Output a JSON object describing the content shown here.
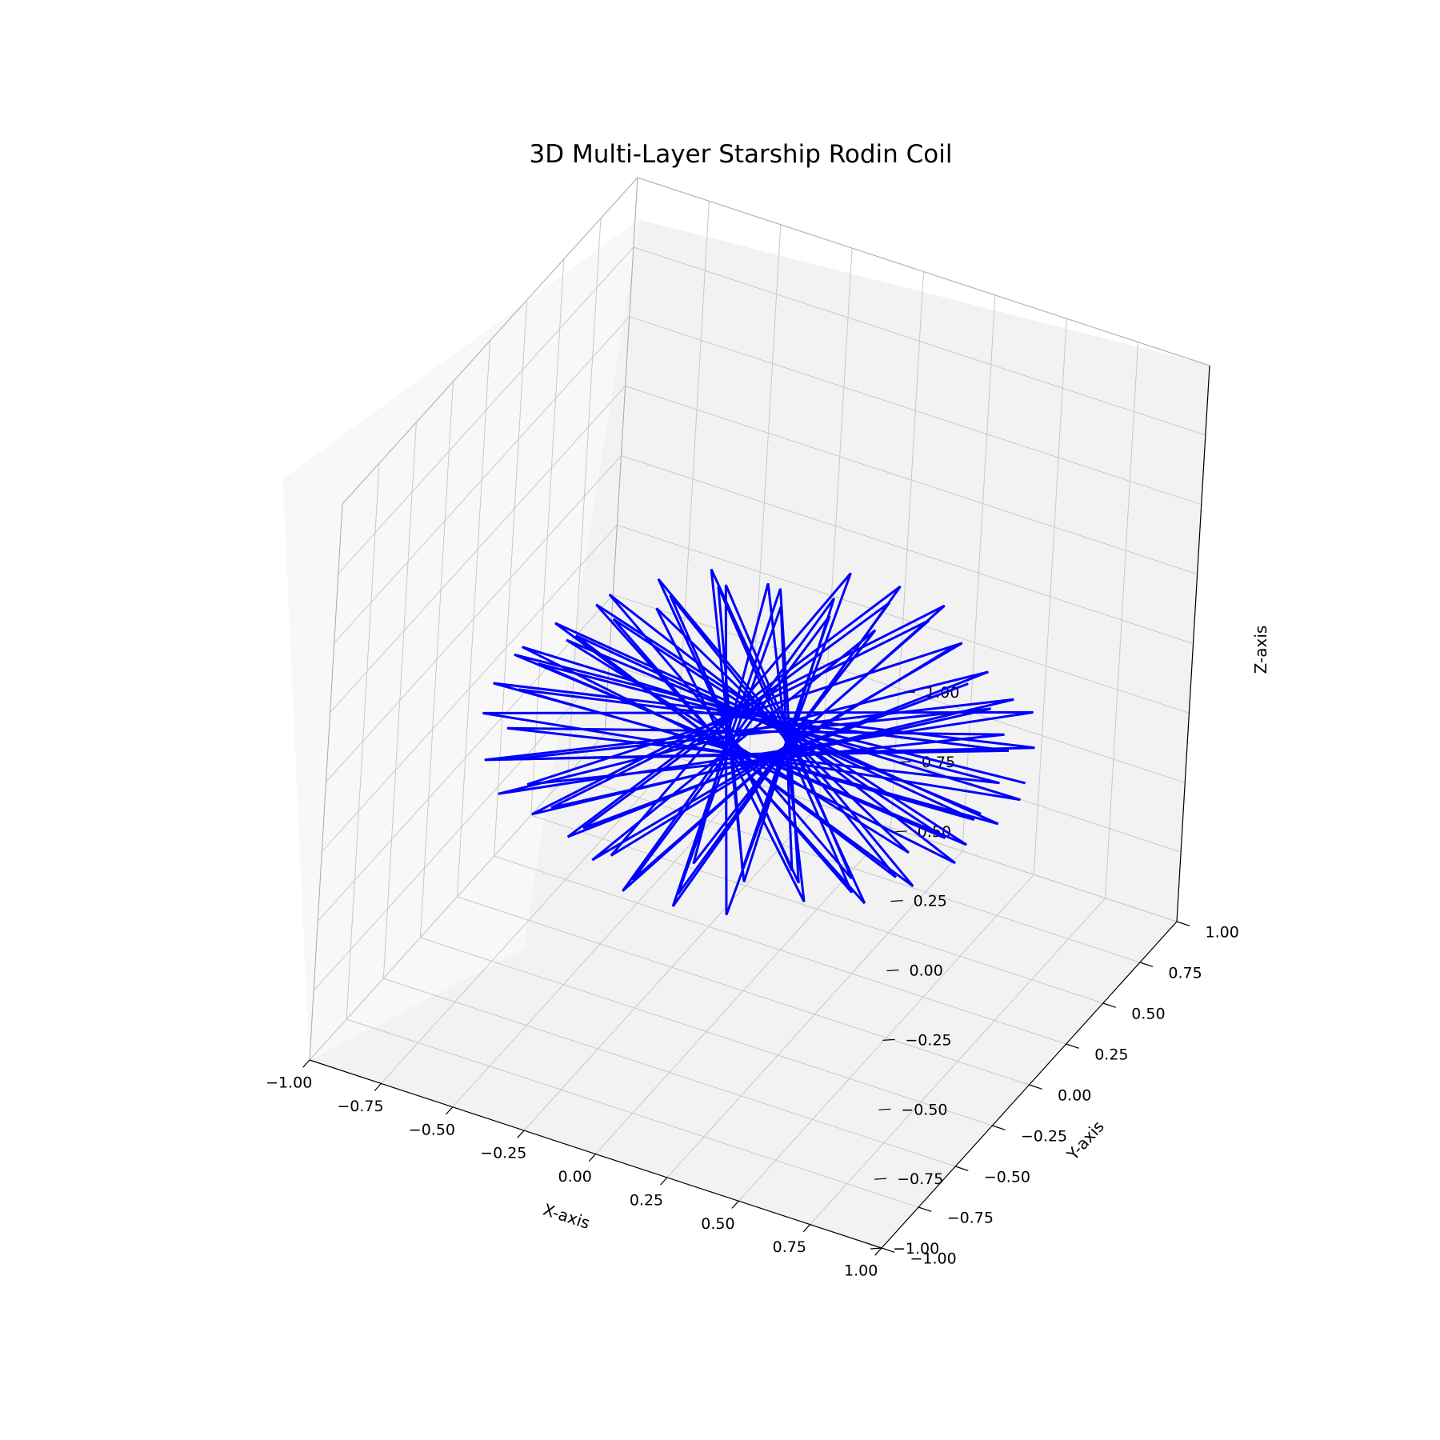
{
  "chart_data": {
    "type": "line",
    "projection": "3d",
    "title": "3D Multi-Layer Starship Rodin Coil",
    "xlabel": "X-axis",
    "ylabel": "Y-axis",
    "zlabel": "Z-axis",
    "xlim": [
      -1,
      1
    ],
    "ylim": [
      -1,
      1
    ],
    "zlim": [
      -1,
      1
    ],
    "grid": true,
    "legend": "none",
    "ticks": {
      "x": [
        "−1.00",
        "−0.75",
        "−0.50",
        "−0.25",
        "0.00",
        "0.25",
        "0.50",
        "0.75",
        "1.00"
      ],
      "y": [
        "−1.00",
        "−0.75",
        "−0.50",
        "−0.25",
        "0.00",
        "0.25",
        "0.50",
        "0.75",
        "1.00"
      ],
      "z": [
        "−1.00",
        "−0.75",
        "−0.50",
        "−0.25",
        "0.00",
        "0.25",
        "0.50",
        "0.75",
        "1.00"
      ]
    },
    "series": [
      {
        "color": "#0000ff",
        "points_per_layer": 37,
        "step_angle_deg": 167.027,
        "layers": [
          {
            "radius": 0.78,
            "z": -0.1,
            "start_angle_deg": 0
          },
          {
            "radius": 0.86,
            "z": -0.09,
            "start_angle_deg": 12
          }
        ]
      }
    ]
  }
}
